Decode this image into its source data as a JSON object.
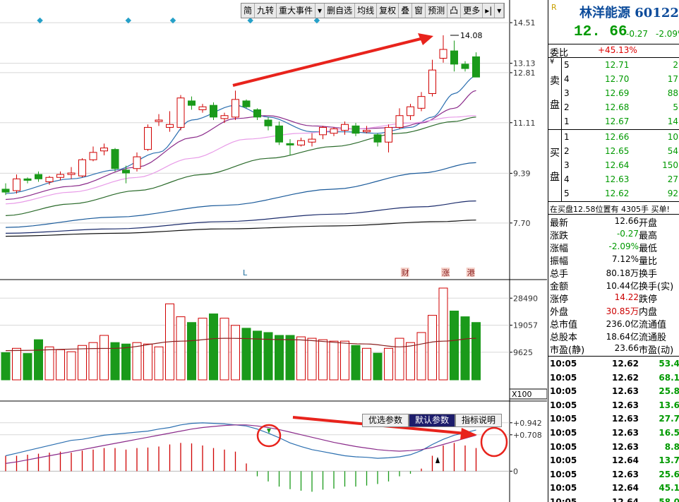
{
  "toolbar": {
    "items": [
      "简",
      "九转",
      "重大事件",
      "▾",
      "删自选",
      "均线",
      "复权",
      "叠",
      "窗",
      "预测",
      "凸",
      "更多",
      "▸|",
      "▾"
    ]
  },
  "indicator_tabs": [
    "优选参数",
    "默认参数",
    "指标说明"
  ],
  "colors": {
    "up": "#d00000",
    "down": "#1a9a1a",
    "ma1": "#2b6fb0",
    "ma2": "#8a2a8a",
    "ma3": "#e89be8",
    "ma4": "#2a6a2a",
    "ma5": "#1a5a9a",
    "ma6": "#1a2a6a",
    "ma7": "#111111",
    "annot": "#e8231c",
    "dif": "#2b6fb0",
    "dea": "#8a2a8a"
  },
  "chart_data": [
    {
      "type": "candlestick",
      "y_axis_ticks": [
        "14.51",
        "13.13",
        "12.81",
        "11.11",
        "9.39",
        "7.70"
      ],
      "ylim": [
        7.0,
        14.8
      ],
      "max_label": "14.08",
      "event_markers": [
        "L",
        "财",
        "涨",
        "港"
      ],
      "candles": [
        {
          "o": 8.85,
          "h": 9.05,
          "l": 8.65,
          "c": 8.75
        },
        {
          "o": 8.8,
          "h": 9.35,
          "l": 8.7,
          "c": 9.2
        },
        {
          "o": 9.2,
          "h": 9.25,
          "l": 9.05,
          "c": 9.15
        },
        {
          "o": 9.35,
          "h": 9.45,
          "l": 9.1,
          "c": 9.2
        },
        {
          "o": 9.1,
          "h": 9.3,
          "l": 9.0,
          "c": 9.25
        },
        {
          "o": 9.25,
          "h": 9.45,
          "l": 9.15,
          "c": 9.35
        },
        {
          "o": 9.35,
          "h": 9.6,
          "l": 9.2,
          "c": 9.4
        },
        {
          "o": 9.3,
          "h": 9.9,
          "l": 9.25,
          "c": 9.85
        },
        {
          "o": 9.85,
          "h": 10.3,
          "l": 9.8,
          "c": 10.1
        },
        {
          "o": 10.15,
          "h": 10.4,
          "l": 10.0,
          "c": 10.25
        },
        {
          "o": 10.2,
          "h": 10.25,
          "l": 9.45,
          "c": 9.55
        },
        {
          "o": 9.5,
          "h": 9.65,
          "l": 9.05,
          "c": 9.4
        },
        {
          "o": 9.55,
          "h": 10.1,
          "l": 9.45,
          "c": 9.95
        },
        {
          "o": 10.2,
          "h": 11.05,
          "l": 10.15,
          "c": 10.95
        },
        {
          "o": 11.15,
          "h": 11.4,
          "l": 11.0,
          "c": 11.2
        },
        {
          "o": 10.95,
          "h": 11.5,
          "l": 10.8,
          "c": 11.05
        },
        {
          "o": 10.95,
          "h": 12.05,
          "l": 10.85,
          "c": 11.95
        },
        {
          "o": 11.85,
          "h": 12.0,
          "l": 11.55,
          "c": 11.7
        },
        {
          "o": 11.55,
          "h": 11.75,
          "l": 11.45,
          "c": 11.65
        },
        {
          "o": 11.7,
          "h": 11.8,
          "l": 11.2,
          "c": 11.3
        },
        {
          "o": 11.25,
          "h": 11.45,
          "l": 11.1,
          "c": 11.35
        },
        {
          "o": 11.3,
          "h": 12.2,
          "l": 11.2,
          "c": 11.9
        },
        {
          "o": 11.85,
          "h": 11.9,
          "l": 11.6,
          "c": 11.65
        },
        {
          "o": 11.55,
          "h": 11.6,
          "l": 11.2,
          "c": 11.3
        },
        {
          "o": 11.2,
          "h": 11.3,
          "l": 10.85,
          "c": 11.0
        },
        {
          "o": 11.0,
          "h": 11.15,
          "l": 10.35,
          "c": 10.45
        },
        {
          "o": 10.4,
          "h": 10.55,
          "l": 10.0,
          "c": 10.35
        },
        {
          "o": 10.35,
          "h": 10.6,
          "l": 10.3,
          "c": 10.5
        },
        {
          "o": 10.45,
          "h": 10.75,
          "l": 10.3,
          "c": 10.55
        },
        {
          "o": 10.7,
          "h": 11.0,
          "l": 10.55,
          "c": 10.95
        },
        {
          "o": 10.75,
          "h": 10.95,
          "l": 10.65,
          "c": 10.9
        },
        {
          "o": 10.85,
          "h": 11.15,
          "l": 10.7,
          "c": 11.05
        },
        {
          "o": 11.0,
          "h": 11.1,
          "l": 10.65,
          "c": 10.75
        },
        {
          "o": 10.8,
          "h": 11.0,
          "l": 10.75,
          "c": 10.85
        },
        {
          "o": 10.7,
          "h": 10.75,
          "l": 10.3,
          "c": 10.45
        },
        {
          "o": 10.45,
          "h": 11.05,
          "l": 10.1,
          "c": 10.95
        },
        {
          "o": 10.95,
          "h": 11.6,
          "l": 10.9,
          "c": 11.35
        },
        {
          "o": 11.35,
          "h": 11.75,
          "l": 11.2,
          "c": 11.65
        },
        {
          "o": 11.6,
          "h": 12.15,
          "l": 11.5,
          "c": 12.0
        },
        {
          "o": 12.1,
          "h": 13.25,
          "l": 12.0,
          "c": 12.9
        },
        {
          "o": 13.3,
          "h": 14.08,
          "l": 13.15,
          "c": 13.6
        },
        {
          "o": 13.55,
          "h": 13.9,
          "l": 12.85,
          "c": 13.1
        },
        {
          "o": 13.1,
          "h": 13.2,
          "l": 12.85,
          "c": 12.95
        },
        {
          "o": 13.35,
          "h": 13.5,
          "l": 12.66,
          "c": 12.66
        }
      ],
      "ma_lines": [
        {
          "x": [
            0,
            6,
            10,
            14,
            17,
            21,
            24,
            28,
            31,
            34,
            37,
            39,
            41,
            43
          ],
          "y": [
            8.7,
            9.2,
            9.5,
            10.1,
            11.2,
            11.7,
            11.3,
            10.8,
            10.8,
            10.75,
            10.95,
            11.3,
            12.1,
            12.7
          ]
        },
        {
          "x": [
            0,
            6,
            12,
            17,
            21,
            24,
            28,
            32,
            36,
            38,
            41,
            43
          ],
          "y": [
            8.5,
            8.95,
            9.6,
            10.6,
            11.25,
            11.35,
            11.0,
            10.9,
            10.95,
            11.1,
            11.6,
            12.2
          ]
        },
        {
          "x": [
            0,
            6,
            12,
            17,
            22,
            27,
            32,
            37,
            41,
            43
          ],
          "y": [
            8.35,
            8.75,
            9.25,
            9.9,
            10.55,
            10.75,
            10.9,
            11.1,
            11.3,
            11.35
          ]
        },
        {
          "x": [
            0,
            6,
            12,
            18,
            24,
            30,
            36,
            41,
            43
          ],
          "y": [
            7.95,
            8.35,
            8.8,
            9.35,
            9.9,
            10.3,
            10.75,
            11.15,
            11.3
          ]
        },
        {
          "x": [
            0,
            10,
            20,
            30,
            38,
            43
          ],
          "y": [
            7.55,
            7.9,
            8.3,
            8.85,
            9.4,
            9.75
          ]
        },
        {
          "x": [
            0,
            10,
            20,
            30,
            38,
            43
          ],
          "y": [
            7.35,
            7.5,
            7.75,
            8.0,
            8.25,
            8.45
          ]
        },
        {
          "x": [
            0,
            10,
            20,
            30,
            40,
            43
          ],
          "y": [
            7.25,
            7.35,
            7.5,
            7.6,
            7.75,
            7.8
          ]
        }
      ]
    },
    {
      "type": "bar",
      "y_axis_ticks": [
        "28490",
        "19057",
        "9625"
      ],
      "unit_label": "X100",
      "ylim": [
        0,
        32000
      ],
      "values": [
        9500,
        11000,
        9200,
        14000,
        11500,
        10500,
        9800,
        12000,
        13000,
        15500,
        13000,
        12500,
        13000,
        12500,
        11500,
        26500,
        22000,
        20000,
        21500,
        23000,
        21500,
        19000,
        18000,
        17000,
        16500,
        15500,
        15500,
        15000,
        14500,
        14000,
        13500,
        13500,
        12000,
        11000,
        9300,
        11000,
        14500,
        13000,
        16500,
        22500,
        32000,
        24000,
        22000,
        20000
      ],
      "ma": [
        {
          "x": 0,
          "y": 10200
        },
        {
          "x": 10,
          "y": 11000
        },
        {
          "x": 16,
          "y": 13500
        },
        {
          "x": 20,
          "y": 14500
        },
        {
          "x": 26,
          "y": 14000
        },
        {
          "x": 33,
          "y": 12500
        },
        {
          "x": 36,
          "y": 11500
        },
        {
          "x": 40,
          "y": 13500
        },
        {
          "x": 43,
          "y": 14500
        }
      ]
    },
    {
      "type": "macd",
      "y_axis_ticks": [
        "+0.942",
        "+0.708",
        "0"
      ],
      "ylim": [
        -0.6,
        1.2
      ],
      "hist": [
        0.3,
        0.3,
        0.32,
        0.34,
        0.36,
        0.38,
        0.36,
        0.4,
        0.42,
        0.45,
        0.45,
        0.42,
        0.45,
        0.46,
        0.48,
        0.52,
        0.55,
        0.54,
        0.5,
        0.45,
        0.42,
        0.38,
        0.15,
        -0.1,
        -0.2,
        -0.3,
        -0.35,
        -0.38,
        -0.4,
        -0.36,
        -0.34,
        -0.3,
        -0.3,
        -0.28,
        -0.25,
        -0.2,
        -0.1,
        -0.05,
        0.05,
        0.3,
        0.5,
        0.55,
        0.5,
        0.45
      ],
      "dif": [
        0.3,
        0.35,
        0.4,
        0.45,
        0.5,
        0.55,
        0.6,
        0.62,
        0.66,
        0.7,
        0.72,
        0.74,
        0.76,
        0.78,
        0.82,
        0.85,
        0.9,
        0.93,
        0.94,
        0.93,
        0.92,
        0.9,
        0.88,
        0.82,
        0.74,
        0.65,
        0.55,
        0.48,
        0.42,
        0.38,
        0.34,
        0.3,
        0.28,
        0.27,
        0.25,
        0.26,
        0.28,
        0.32,
        0.4,
        0.52,
        0.62,
        0.7,
        0.75,
        0.8
      ],
      "dea": [
        0.15,
        0.18,
        0.22,
        0.26,
        0.3,
        0.34,
        0.38,
        0.42,
        0.46,
        0.5,
        0.54,
        0.58,
        0.62,
        0.66,
        0.7,
        0.74,
        0.78,
        0.82,
        0.85,
        0.87,
        0.89,
        0.9,
        0.9,
        0.88,
        0.85,
        0.81,
        0.76,
        0.71,
        0.66,
        0.61,
        0.56,
        0.52,
        0.48,
        0.45,
        0.42,
        0.4,
        0.39,
        0.4,
        0.42,
        0.46,
        0.52,
        0.58,
        0.64,
        0.7
      ]
    }
  ],
  "quote": {
    "logo": "R",
    "name": "林洋能源 601222",
    "price": "12. 66",
    "change": "-0.27",
    "pct": "-2.09%",
    "ratio_label": "委比",
    "ratio_value": "+45.13%",
    "sell_label": "卖盘",
    "buy_label": "买盘",
    "yen": "¥",
    "sells": [
      {
        "lv": "5",
        "p": "12.71",
        "v": "2"
      },
      {
        "lv": "4",
        "p": "12.70",
        "v": "17"
      },
      {
        "lv": "3",
        "p": "12.69",
        "v": "88"
      },
      {
        "lv": "2",
        "p": "12.68",
        "v": "5"
      },
      {
        "lv": "1",
        "p": "12.67",
        "v": "14"
      }
    ],
    "buys": [
      {
        "lv": "1",
        "p": "12.66",
        "v": "10"
      },
      {
        "lv": "2",
        "p": "12.65",
        "v": "54"
      },
      {
        "lv": "3",
        "p": "12.64",
        "v": "150"
      },
      {
        "lv": "4",
        "p": "12.63",
        "v": "27"
      },
      {
        "lv": "5",
        "p": "12.62",
        "v": "92"
      }
    ],
    "info_line": "在买盘12.58位置有 4305手 买单!",
    "stats": [
      {
        "l1": "最新",
        "v1": "12.66",
        "l2": "开盘"
      },
      {
        "l1": "涨跌",
        "v1": "-0.27",
        "l2": "最高"
      },
      {
        "l1": "涨幅",
        "v1": "-2.09%",
        "l2": "最低"
      },
      {
        "l1": "振幅",
        "v1": "7.12%",
        "l2": "量比"
      },
      {
        "l1": "总手",
        "v1": "80.18万",
        "l2": "换手"
      },
      {
        "l1": "金额",
        "v1": "10.44亿",
        "l2": "换手(实)"
      },
      {
        "l1": "涨停",
        "v1": "14.22",
        "l2": "跌停"
      },
      {
        "l1": "外盘",
        "v1": "30.85万",
        "l2": "内盘"
      },
      {
        "l1": "总市值",
        "v1": "236.0亿",
        "l2": "流通值"
      },
      {
        "l1": "总股本",
        "v1": "18.64亿",
        "l2": "流通股"
      },
      {
        "l1": "市盈(静)",
        "v1": "23.66",
        "l2": "市盈(动)"
      }
    ],
    "ticks": [
      {
        "t": "10:05",
        "p": "12.62",
        "v": "53.4"
      },
      {
        "t": "10:05",
        "p": "12.62",
        "v": "68.1"
      },
      {
        "t": "10:05",
        "p": "12.63",
        "v": "25.8"
      },
      {
        "t": "10:05",
        "p": "12.63",
        "v": "13.6"
      },
      {
        "t": "10:05",
        "p": "12.63",
        "v": "27.7"
      },
      {
        "t": "10:05",
        "p": "12.63",
        "v": "16.5"
      },
      {
        "t": "10:05",
        "p": "12.63",
        "v": "8.8"
      },
      {
        "t": "10:05",
        "p": "12.64",
        "v": "13.7"
      },
      {
        "t": "10:05",
        "p": "12.63",
        "v": "25.6"
      },
      {
        "t": "10:05",
        "p": "12.64",
        "v": "45.1"
      },
      {
        "t": "10:05",
        "p": "12.64",
        "v": "58.0"
      }
    ]
  }
}
